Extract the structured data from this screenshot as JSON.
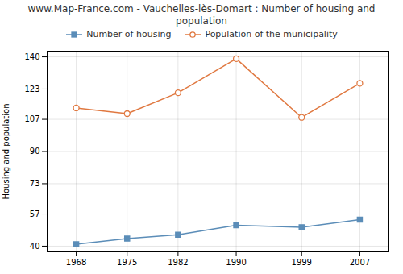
{
  "chart_data": {
    "type": "line",
    "title": "www.Map-France.com - Vauchelles-lès-Domart : Number of housing and population",
    "ylabel": "Housing and population",
    "x": [
      1968,
      1975,
      1982,
      1990,
      1999,
      2007
    ],
    "series": [
      {
        "name": "Number of housing",
        "color": "#5b8db8",
        "marker": "square",
        "values": [
          41,
          44,
          46,
          51,
          50,
          54
        ]
      },
      {
        "name": "Population of the municipality",
        "color": "#e07840",
        "marker": "circle",
        "values": [
          113,
          110,
          121,
          139,
          108,
          126
        ]
      }
    ],
    "xlim": [
      1964,
      2011
    ],
    "xticks": [
      1968,
      1975,
      1982,
      1990,
      1999,
      2007
    ],
    "ylim": [
      37,
      143
    ],
    "yticks": [
      40,
      57,
      73,
      90,
      107,
      123,
      140
    ],
    "grid": true,
    "legend": "top"
  }
}
